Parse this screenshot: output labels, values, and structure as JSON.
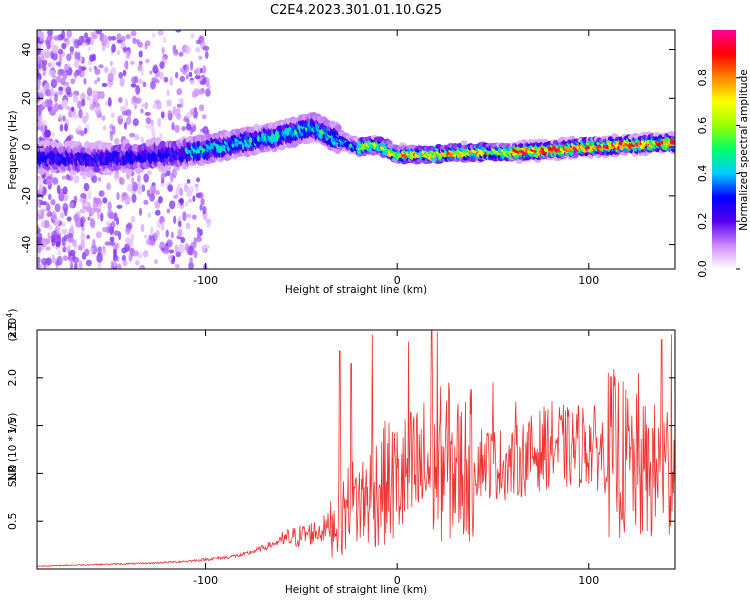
{
  "title": "C2E4.2023.301.01.10.G25",
  "chart_data": [
    {
      "type": "heatmap",
      "xlabel": "Height of straight line (km)",
      "ylabel": "Frequency (Hz)",
      "xlim": [
        -188,
        145
      ],
      "ylim": [
        -50,
        48
      ],
      "xticks": [
        -100,
        0,
        100
      ],
      "xtick_labels": [
        "-100",
        "0",
        "100"
      ],
      "yticks": [
        -40,
        -20,
        0,
        20,
        40
      ],
      "ytick_labels": [
        "-40",
        "-20",
        "0",
        "20",
        "40"
      ],
      "ridge_frequency": {
        "x": [
          -188,
          -160,
          -140,
          -120,
          -100,
          -80,
          -60,
          -45,
          -40,
          -30,
          -20,
          -10,
          0,
          20,
          40,
          60,
          80,
          100,
          120,
          145
        ],
        "y": [
          -4,
          -5,
          -4,
          -3,
          -1,
          2,
          5,
          8,
          7,
          3,
          0,
          1,
          -3,
          -3,
          -2,
          -2,
          -1,
          0,
          1,
          2
        ]
      },
      "colorbar": {
        "label": "Normalized spectral amplitude",
        "range": [
          0,
          1
        ],
        "ticks": [
          0.0,
          0.2,
          0.4,
          0.6,
          0.8
        ],
        "tick_labels": [
          "0.0",
          "0.2",
          "0.4",
          "0.6",
          "0.8"
        ],
        "colormap": [
          "#ffffff",
          "#cc88ff",
          "#5500ee",
          "#0000ff",
          "#00ccff",
          "#00ff66",
          "#99ff00",
          "#ffff00",
          "#ff8800",
          "#ff0000",
          "#ff0099"
        ]
      },
      "grid": false
    },
    {
      "type": "line",
      "xlabel": "Height of straight line (km)",
      "ylabel": "SNR (10 * v/v)",
      "multiplier_label": "(x10",
      "multiplier_exp": "4",
      "multiplier_close": ")",
      "xlim": [
        -188,
        145
      ],
      "ylim": [
        0,
        2.5
      ],
      "xticks": [
        -100,
        0,
        100
      ],
      "xtick_labels": [
        "-100",
        "0",
        "100"
      ],
      "yticks": [
        0.5,
        1.0,
        1.5,
        2.0,
        2.5
      ],
      "ytick_labels": [
        "0.5",
        "1.0",
        "1.5",
        "2.0",
        "2.5"
      ],
      "line_color": "#ee3333",
      "series": [
        {
          "x": [
            -188,
            -170,
            -150,
            -130,
            -110,
            -100,
            -90,
            -80,
            -70,
            -60,
            -50,
            -40,
            -35,
            -30,
            -25,
            -20,
            -15,
            -10,
            -5,
            0,
            5,
            10,
            15,
            20,
            25,
            30,
            35,
            40,
            45,
            50,
            55,
            60,
            65,
            70,
            75,
            80,
            85,
            90,
            95,
            100,
            105,
            110,
            115,
            120,
            125,
            130,
            135,
            140,
            145
          ],
          "y": [
            0.03,
            0.04,
            0.05,
            0.06,
            0.08,
            0.1,
            0.12,
            0.15,
            0.22,
            0.3,
            0.35,
            0.4,
            0.45,
            0.55,
            0.65,
            0.7,
            0.75,
            0.85,
            0.9,
            0.9,
            0.95,
            1.0,
            1.05,
            1.1,
            1.1,
            1.05,
            1.05,
            1.1,
            1.15,
            1.1,
            1.1,
            1.1,
            1.15,
            1.2,
            1.25,
            1.3,
            1.3,
            1.25,
            1.3,
            1.3,
            1.25,
            1.2,
            1.2,
            1.1,
            1.05,
            1.0,
            1.0,
            1.05,
            1.1
          ],
          "peaks": [
            {
              "x": -30,
              "y": 2.28
            },
            {
              "x": -24,
              "y": 2.15
            },
            {
              "x": -13,
              "y": 2.45
            },
            {
              "x": 6,
              "y": 2.38
            },
            {
              "x": 18,
              "y": 2.5
            },
            {
              "x": 21,
              "y": 2.48
            },
            {
              "x": 27,
              "y": 1.95
            },
            {
              "x": 50,
              "y": 1.95
            },
            {
              "x": 62,
              "y": 1.75
            },
            {
              "x": 126,
              "y": 2.05
            },
            {
              "x": 138,
              "y": 2.4
            },
            {
              "x": 143,
              "y": 2.45
            }
          ]
        }
      ],
      "grid": false
    }
  ]
}
